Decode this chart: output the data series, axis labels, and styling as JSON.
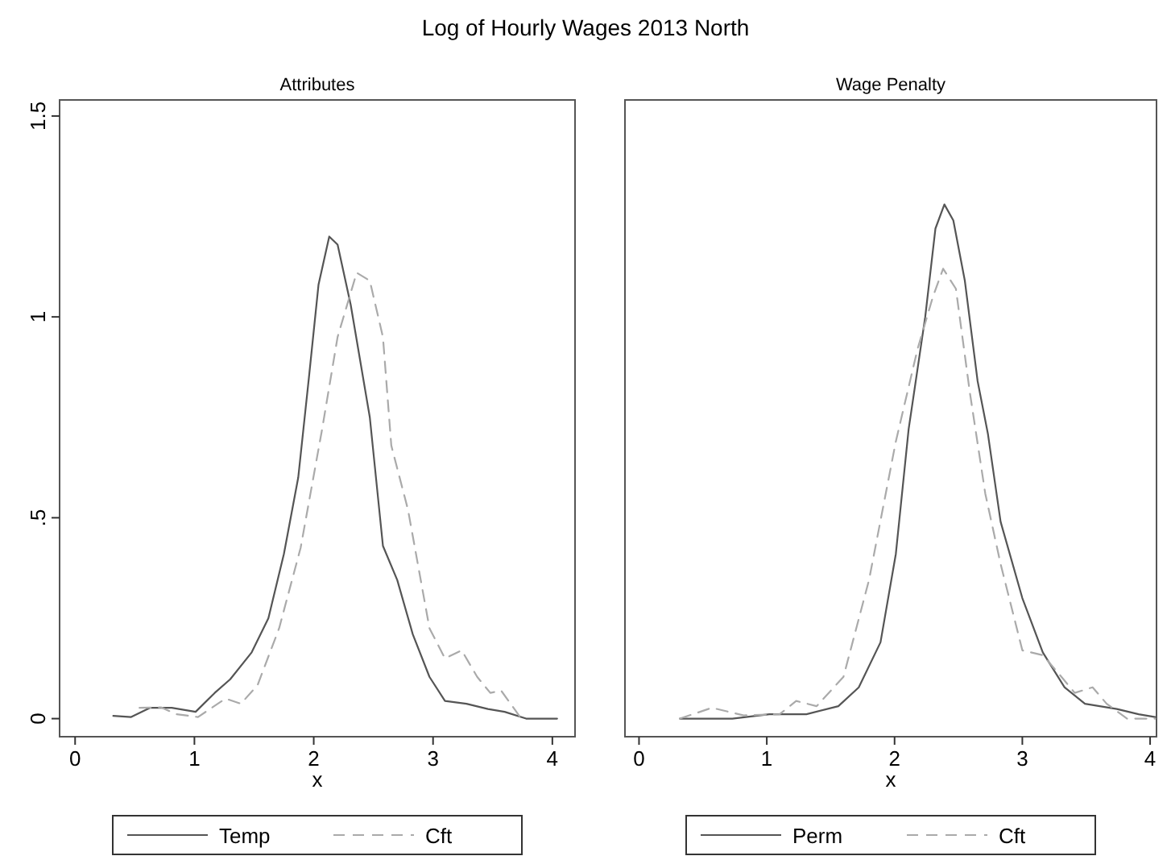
{
  "chart_data": [
    {
      "type": "line",
      "title": "Log of Hourly Wages 2013 North",
      "subtitle": "Attributes",
      "xlabel": "x",
      "xlim": [
        -0.13,
        4.19
      ],
      "xticks": [
        0,
        1,
        2,
        3,
        4
      ],
      "ylim": [
        -0.045,
        1.54
      ],
      "yticks": [
        0,
        {
          "value": 0.5,
          "label": ".5"
        },
        1,
        1.5
      ],
      "legend": "bottom",
      "grid": false,
      "series": [
        {
          "name": "Temp",
          "color": "#555555",
          "line_style": "solid",
          "x": [
            0.32,
            0.47,
            0.63,
            0.81,
            1.01,
            1.17,
            1.3,
            1.48,
            1.62,
            1.75,
            1.87,
            1.96,
            2.04,
            2.13,
            2.2,
            2.31,
            2.47,
            2.58,
            2.7,
            2.83,
            2.97,
            3.1,
            3.28,
            3.46,
            3.6,
            3.78,
            4.04
          ],
          "values": [
            0.007,
            0.004,
            0.027,
            0.027,
            0.017,
            0.064,
            0.098,
            0.165,
            0.25,
            0.41,
            0.6,
            0.85,
            1.08,
            1.2,
            1.18,
            1.03,
            0.75,
            0.43,
            0.345,
            0.21,
            0.104,
            0.044,
            0.037,
            0.024,
            0.017,
            0,
            0
          ]
        },
        {
          "name": "Cft",
          "color": "#aaaaaa",
          "line_style": "dashed",
          "x": [
            0.54,
            0.72,
            0.85,
            1.03,
            1.26,
            1.39,
            1.53,
            1.71,
            1.89,
            2.07,
            2.2,
            2.36,
            2.47,
            2.58,
            2.65,
            2.79,
            2.97,
            3.1,
            3.24,
            3.37,
            3.48,
            3.57,
            3.73
          ],
          "values": [
            0.027,
            0.028,
            0.011,
            0.004,
            0.05,
            0.037,
            0.084,
            0.225,
            0.425,
            0.72,
            0.95,
            1.11,
            1.09,
            0.95,
            0.68,
            0.52,
            0.225,
            0.15,
            0.17,
            0.104,
            0.064,
            0.07,
            0.004
          ]
        }
      ]
    },
    {
      "type": "line",
      "subtitle": "Wage Penalty",
      "xlabel": "x",
      "xlim": [
        -0.11,
        4.05
      ],
      "xticks": [
        0,
        1,
        2,
        3,
        4
      ],
      "ylim": [
        -0.045,
        1.54
      ],
      "tick_labels": "x",
      "legend": "bottom",
      "grid": false,
      "series": [
        {
          "name": "Perm",
          "color": "#555555",
          "line_style": "solid",
          "x": [
            0.32,
            0.73,
            1.02,
            1.31,
            1.56,
            1.72,
            1.89,
            2.01,
            2.11,
            2.24,
            2.32,
            2.39,
            2.46,
            2.55,
            2.65,
            2.73,
            2.83,
            3.0,
            3.16,
            3.33,
            3.49,
            3.74,
            3.91,
            4.04
          ],
          "values": [
            0,
            0,
            0.011,
            0.011,
            0.031,
            0.078,
            0.19,
            0.41,
            0.72,
            1.0,
            1.22,
            1.28,
            1.24,
            1.09,
            0.84,
            0.71,
            0.49,
            0.3,
            0.165,
            0.078,
            0.037,
            0.024,
            0.011,
            0.004
          ]
        },
        {
          "name": "Cft",
          "color": "#aaaaaa",
          "line_style": "dashed",
          "x": [
            0.32,
            0.57,
            0.82,
            1.1,
            1.23,
            1.39,
            1.6,
            1.8,
            2.01,
            2.18,
            2.3,
            2.38,
            2.48,
            2.59,
            2.71,
            2.83,
            3.0,
            3.16,
            3.29,
            3.41,
            3.55,
            3.66,
            3.82,
            4.04
          ],
          "values": [
            0,
            0.027,
            0.008,
            0.011,
            0.044,
            0.031,
            0.104,
            0.345,
            0.69,
            0.92,
            1.05,
            1.12,
            1.07,
            0.81,
            0.56,
            0.385,
            0.17,
            0.158,
            0.11,
            0.064,
            0.078,
            0.037,
            0,
            0
          ]
        }
      ]
    }
  ]
}
